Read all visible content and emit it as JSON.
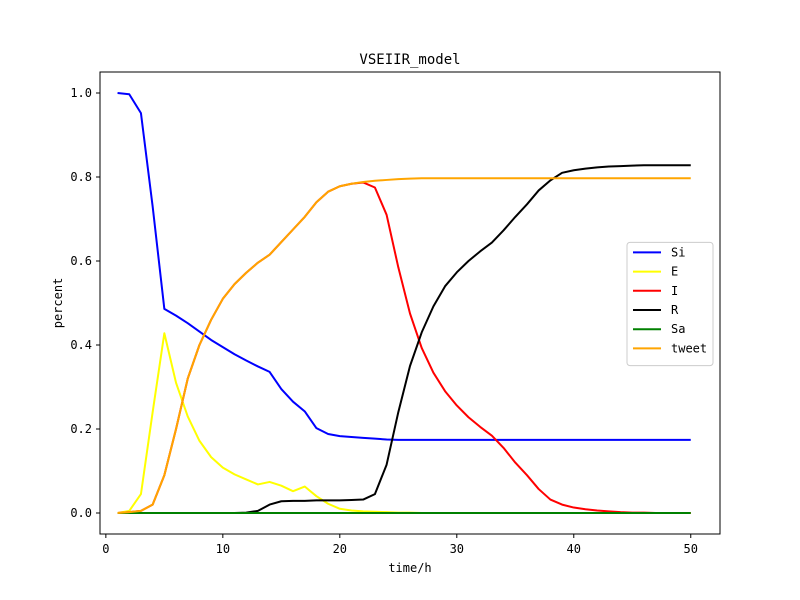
{
  "chart_data": {
    "type": "line",
    "title": "VSEIIR_model",
    "xlabel": "time/h",
    "ylabel": "percent",
    "xlim": [
      -0.5,
      52.5
    ],
    "ylim": [
      -0.05,
      1.05
    ],
    "xticks": [
      0,
      10,
      20,
      30,
      40,
      50
    ],
    "yticks": [
      0.0,
      0.2,
      0.4,
      0.6,
      0.8,
      1.0
    ],
    "xtick_labels": [
      "0",
      "10",
      "20",
      "30",
      "40",
      "50"
    ],
    "ytick_labels": [
      "0.0",
      "0.2",
      "0.4",
      "0.6",
      "0.8",
      "1.0"
    ],
    "grid": false,
    "legend_position": "center-right",
    "x": [
      1,
      2,
      3,
      4,
      5,
      6,
      7,
      8,
      9,
      10,
      11,
      12,
      13,
      14,
      15,
      16,
      17,
      18,
      19,
      20,
      21,
      22,
      23,
      24,
      25,
      26,
      27,
      28,
      29,
      30,
      31,
      32,
      33,
      34,
      35,
      36,
      37,
      38,
      39,
      40,
      41,
      42,
      43,
      44,
      45,
      46,
      47,
      48,
      49,
      50
    ],
    "series": [
      {
        "name": "Si",
        "color": "#0000ff",
        "values": [
          1.0,
          0.997,
          0.952,
          0.73,
          0.486,
          0.47,
          0.452,
          0.432,
          0.412,
          0.395,
          0.378,
          0.363,
          0.349,
          0.336,
          0.295,
          0.265,
          0.242,
          0.202,
          0.188,
          0.183,
          0.181,
          0.179,
          0.177,
          0.175,
          0.174,
          0.174,
          0.174,
          0.174,
          0.174,
          0.174,
          0.174,
          0.174,
          0.174,
          0.174,
          0.174,
          0.174,
          0.174,
          0.174,
          0.174,
          0.174,
          0.174,
          0.174,
          0.174,
          0.174,
          0.174,
          0.174,
          0.174,
          0.174,
          0.174,
          0.174
        ]
      },
      {
        "name": "E",
        "color": "#ffff00",
        "values": [
          0.0,
          0.005,
          0.045,
          0.24,
          0.428,
          0.31,
          0.23,
          0.172,
          0.133,
          0.108,
          0.092,
          0.08,
          0.068,
          0.074,
          0.065,
          0.052,
          0.063,
          0.04,
          0.022,
          0.01,
          0.006,
          0.004,
          0.003,
          0.002,
          0.001,
          0.001,
          0.0,
          0.0,
          0.0,
          0.0,
          0.0,
          0.0,
          0.0,
          0.0,
          0.0,
          0.0,
          0.0,
          0.0,
          0.0,
          0.0,
          0.0,
          0.0,
          0.0,
          0.0,
          0.0,
          0.0,
          0.0,
          0.0,
          0.0,
          0.0
        ]
      },
      {
        "name": "I",
        "color": "#ff0000",
        "values": [
          0.0,
          0.002,
          0.005,
          0.02,
          0.09,
          0.2,
          0.32,
          0.4,
          0.46,
          0.51,
          0.545,
          0.572,
          0.596,
          0.615,
          0.645,
          0.675,
          0.705,
          0.74,
          0.765,
          0.778,
          0.784,
          0.787,
          0.775,
          0.71,
          0.585,
          0.475,
          0.393,
          0.334,
          0.29,
          0.256,
          0.228,
          0.205,
          0.184,
          0.155,
          0.12,
          0.09,
          0.057,
          0.032,
          0.02,
          0.013,
          0.009,
          0.006,
          0.004,
          0.002,
          0.001,
          0.001,
          0.0,
          0.0,
          0.0,
          0.0
        ]
      },
      {
        "name": "R",
        "color": "#000000",
        "values": [
          0.0,
          0.0,
          0.0,
          0.0,
          0.0,
          0.0,
          0.0,
          0.0,
          0.0,
          0.0,
          0.0,
          0.001,
          0.005,
          0.02,
          0.028,
          0.029,
          0.029,
          0.03,
          0.03,
          0.03,
          0.031,
          0.032,
          0.045,
          0.115,
          0.24,
          0.35,
          0.43,
          0.492,
          0.54,
          0.573,
          0.6,
          0.623,
          0.644,
          0.673,
          0.705,
          0.735,
          0.768,
          0.792,
          0.81,
          0.816,
          0.82,
          0.823,
          0.825,
          0.826,
          0.827,
          0.828,
          0.828,
          0.828,
          0.828,
          0.828
        ]
      },
      {
        "name": "Sa",
        "color": "#008000",
        "values": [
          0.0,
          0.0,
          0.0,
          0.0,
          0.0,
          0.0,
          0.0,
          0.0,
          0.0,
          0.0,
          0.0,
          0.0,
          0.0,
          0.0,
          0.0,
          0.0,
          0.0,
          0.0,
          0.0,
          0.0,
          0.0,
          0.0,
          0.0,
          0.0,
          0.0,
          0.0,
          0.0,
          0.0,
          0.0,
          0.0,
          0.0,
          0.0,
          0.0,
          0.0,
          0.0,
          0.0,
          0.0,
          0.0,
          0.0,
          0.0,
          0.0,
          0.0,
          0.0,
          0.0,
          0.0,
          0.0,
          0.0,
          0.0,
          0.0,
          0.0
        ]
      },
      {
        "name": "tweet",
        "color": "#ffa500",
        "values": [
          0.0,
          0.002,
          0.005,
          0.02,
          0.09,
          0.2,
          0.32,
          0.4,
          0.46,
          0.51,
          0.545,
          0.572,
          0.596,
          0.615,
          0.645,
          0.675,
          0.705,
          0.74,
          0.765,
          0.778,
          0.784,
          0.788,
          0.791,
          0.793,
          0.795,
          0.796,
          0.797,
          0.797,
          0.797,
          0.797,
          0.797,
          0.797,
          0.797,
          0.797,
          0.797,
          0.797,
          0.797,
          0.797,
          0.797,
          0.797,
          0.797,
          0.797,
          0.797,
          0.797,
          0.797,
          0.797,
          0.797,
          0.797,
          0.797,
          0.797
        ]
      }
    ]
  }
}
